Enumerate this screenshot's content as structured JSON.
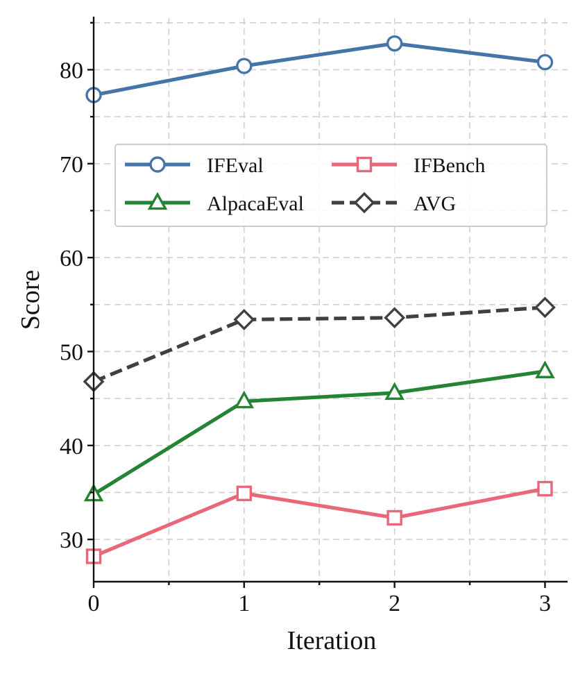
{
  "chart_data": {
    "type": "line",
    "title": "",
    "xlabel": "Iteration",
    "ylabel": "Score",
    "x": [
      0,
      1,
      2,
      3
    ],
    "xticks": [
      "0",
      "1",
      "2",
      "3"
    ],
    "xlim": [
      0,
      3.15
    ],
    "ylim": [
      25.5,
      85.5
    ],
    "yticks": [
      "30",
      "40",
      "50",
      "60",
      "70",
      "80"
    ],
    "ytick_values": [
      30,
      40,
      50,
      60,
      70,
      80
    ],
    "grid": true,
    "legend_position": "upper-center",
    "legend_columns": 2,
    "series": [
      {
        "name": "IFEval",
        "values": [
          77.3,
          80.4,
          82.8,
          80.8
        ],
        "color": "#4575a8",
        "marker": "circle",
        "line_style": "solid"
      },
      {
        "name": "IFBench",
        "values": [
          28.2,
          34.9,
          32.3,
          35.4
        ],
        "color": "#e8687a",
        "marker": "square",
        "line_style": "solid"
      },
      {
        "name": "AlpacaEval",
        "values": [
          34.8,
          44.7,
          45.6,
          47.9
        ],
        "color": "#248433",
        "marker": "triangle",
        "line_style": "solid"
      },
      {
        "name": "AVG",
        "values": [
          46.8,
          53.4,
          53.6,
          54.7
        ],
        "color": "#404040",
        "marker": "diamond",
        "line_style": "dashed"
      }
    ]
  }
}
